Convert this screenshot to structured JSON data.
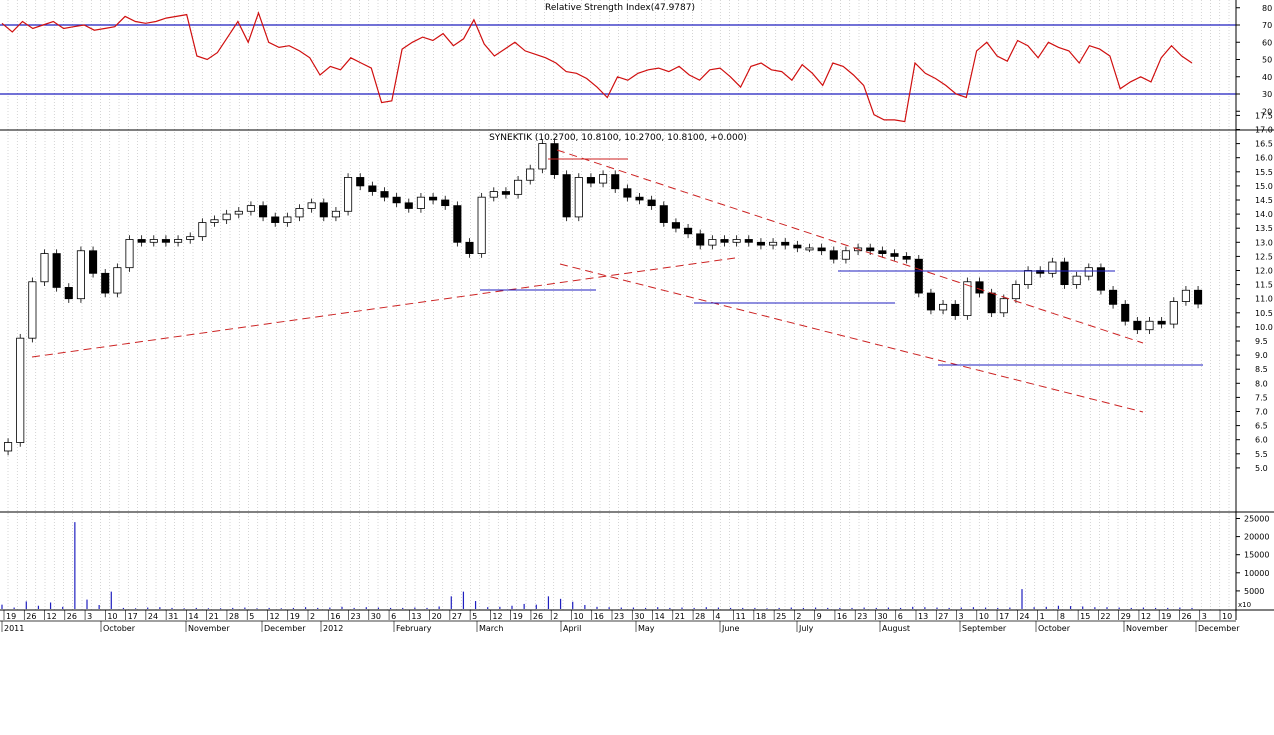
{
  "chart_data": [
    {
      "type": "line",
      "title": "Relative Strength Index(47.9787)",
      "ylim": [
        10,
        80
      ],
      "yticks": [
        "20",
        "30",
        "40",
        "50",
        "60",
        "70",
        "80"
      ],
      "reference_lines": [
        30,
        70
      ],
      "series": [
        {
          "values": [
            71,
            66,
            72,
            68,
            70,
            72,
            68,
            69,
            70,
            67,
            68,
            69,
            75,
            72,
            71,
            72,
            74,
            75,
            76,
            52,
            50,
            54,
            63,
            72,
            60,
            77,
            60,
            57,
            58,
            55,
            51,
            41,
            46,
            44,
            51,
            48,
            45,
            25,
            26,
            56,
            60,
            63,
            61,
            65,
            58,
            62,
            73,
            59,
            52,
            56,
            60,
            55,
            53,
            51,
            48,
            43,
            42,
            39,
            34,
            28,
            40,
            38,
            42,
            44,
            45,
            43,
            46,
            41,
            38,
            44,
            45,
            40,
            34,
            46,
            48,
            44,
            43,
            38,
            47,
            42,
            35,
            48,
            46,
            41,
            35,
            18,
            15,
            15,
            14,
            48,
            42,
            39,
            35,
            30,
            28,
            55,
            60,
            52,
            49,
            61,
            58,
            51,
            60,
            57,
            55,
            48,
            58,
            56,
            52,
            33,
            37,
            40,
            37,
            51,
            58,
            52,
            48
          ]
        }
      ]
    },
    {
      "type": "bar",
      "title": "SYNEKTIK (10.2700, 10.8100, 10.2700, 10.8100, +0.000)",
      "ylim": [
        4.5,
        17.8
      ],
      "yticks": [
        "5.0",
        "5.5",
        "6.0",
        "6.5",
        "7.0",
        "7.5",
        "8.0",
        "8.5",
        "9.0",
        "9.5",
        "10.0",
        "10.5",
        "11.0",
        "11.5",
        "12.0",
        "12.5",
        "13.0",
        "13.5",
        "14.0",
        "14.5",
        "15.0",
        "15.5",
        "16.0",
        "16.5",
        "17.0",
        "17.5"
      ],
      "close": [
        5.9,
        9.6,
        11.6,
        12.6,
        11.4,
        11.0,
        12.7,
        11.9,
        11.2,
        12.1,
        13.1,
        13.0,
        13.1,
        13.0,
        13.1,
        13.2,
        13.7,
        13.8,
        14.0,
        14.1,
        14.3,
        13.9,
        13.7,
        13.9,
        14.2,
        14.4,
        13.9,
        14.1,
        15.3,
        15.0,
        14.8,
        14.6,
        14.4,
        14.2,
        14.6,
        14.5,
        14.3,
        13.0,
        12.6,
        14.6,
        14.8,
        14.7,
        15.2,
        15.6,
        16.5,
        15.4,
        13.9,
        15.3,
        15.1,
        15.4,
        14.9,
        14.6,
        14.5,
        14.3,
        13.7,
        13.5,
        13.3,
        12.9,
        13.1,
        13.0,
        13.1,
        13.0,
        12.9,
        13.0,
        12.9,
        12.8,
        12.8,
        12.7,
        12.4,
        12.7,
        12.8,
        12.7,
        12.6,
        12.5,
        12.4,
        11.2,
        10.6,
        10.8,
        10.4,
        11.6,
        11.2,
        10.5,
        11.0,
        11.5,
        12.0,
        11.9,
        12.3,
        11.5,
        11.8,
        12.1,
        11.3,
        10.8,
        10.2,
        9.9,
        10.2,
        10.1,
        10.9,
        11.3,
        10.81
      ],
      "annotations": "Red dashed trend lines and blue support/resistance lines drawn on the price panel"
    },
    {
      "type": "bar",
      "title": "",
      "ylim": [
        0,
        26000
      ],
      "yticks": [
        "5000",
        "10000",
        "15000",
        "20000",
        "25000"
      ],
      "y_unit_label": "x10",
      "values": [
        1200,
        400,
        2100,
        900,
        1800,
        600,
        24000,
        2600,
        1100,
        4800,
        300,
        200,
        400,
        500,
        300,
        200,
        300,
        200,
        200,
        300,
        400,
        200,
        300,
        200,
        300,
        500,
        300,
        400,
        600,
        300,
        500,
        400,
        300,
        300,
        400,
        300,
        700,
        3500,
        4800,
        2200,
        500,
        600,
        900,
        1400,
        1200,
        3500,
        2800,
        2000,
        1100,
        600,
        500,
        400,
        400,
        300,
        500,
        300,
        400,
        300,
        500,
        400,
        300,
        300,
        300,
        200,
        300,
        400,
        300,
        400,
        300,
        300,
        300,
        400,
        300,
        400,
        300,
        600,
        500,
        400,
        300,
        400,
        500,
        400,
        300,
        400,
        5500,
        500,
        600,
        900,
        800,
        700,
        500,
        500,
        400,
        300,
        400,
        300,
        300,
        400,
        300
      ]
    },
    {
      "type": "axis",
      "day_labels": [
        "19",
        "26",
        "12",
        "26",
        "3",
        "10",
        "17",
        "24",
        "31",
        "14",
        "21",
        "28",
        "5",
        "12",
        "19",
        "2",
        "16",
        "23",
        "30",
        "6",
        "13",
        "20",
        "27",
        "5",
        "12",
        "19",
        "26",
        "2",
        "10",
        "16",
        "23",
        "30",
        "14",
        "21",
        "28",
        "4",
        "11",
        "18",
        "25",
        "2",
        "9",
        "16",
        "23",
        "30",
        "6",
        "13",
        "27",
        "3",
        "10",
        "17",
        "24",
        "1",
        "8",
        "15",
        "22",
        "29",
        "12",
        "19",
        "26",
        "3",
        "10"
      ],
      "month_labels": [
        "2011",
        "October",
        "November",
        "December",
        "2012",
        "February",
        "March",
        "April",
        "May",
        "June",
        "July",
        "August",
        "September",
        "October",
        "November",
        "December"
      ]
    }
  ]
}
